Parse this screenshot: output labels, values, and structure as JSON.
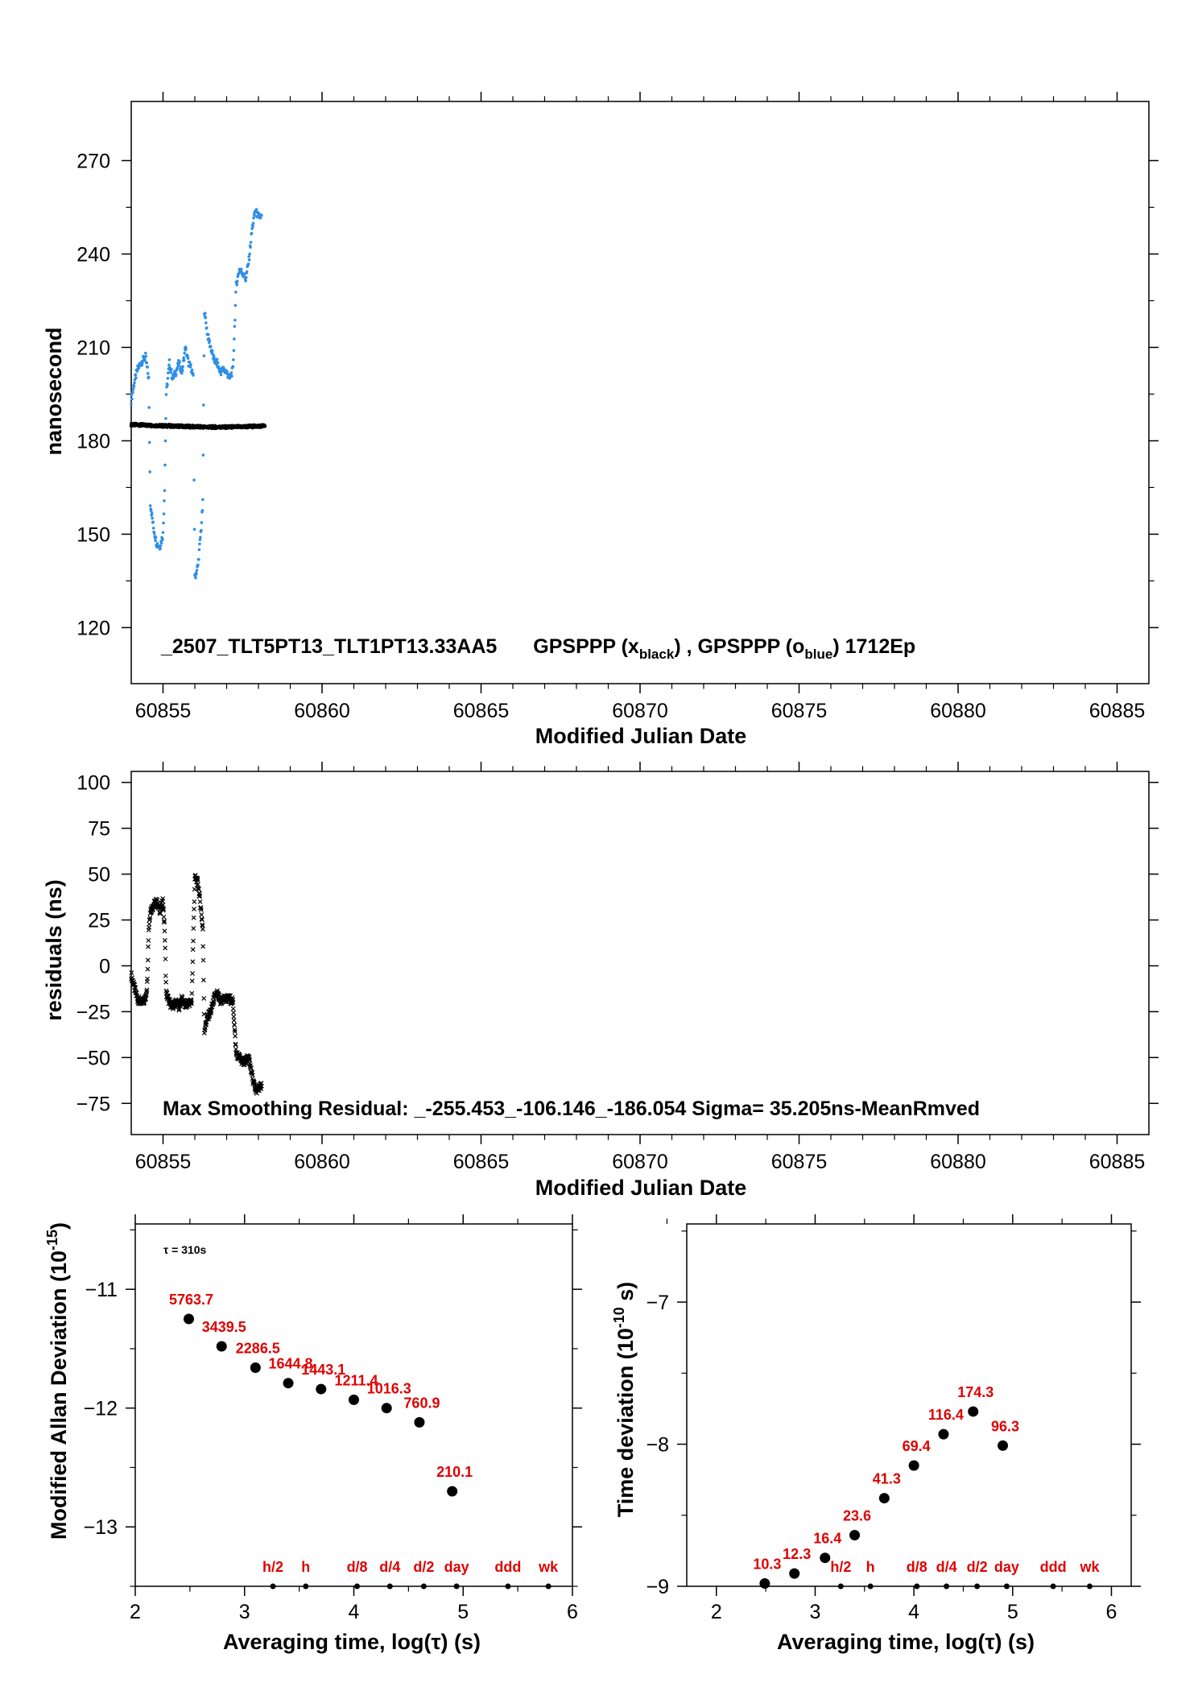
{
  "chart_data": [
    {
      "type": "scatter",
      "id": "phase",
      "title": "_2507_TLT5PT13_TLT1PT13.33AA5",
      "annotation_prefix": "GPSPPP (x",
      "annotation_sub1": "black",
      "annotation_mid": ") ,  GPSPPP (o",
      "annotation_sub2": "blue",
      "annotation_suffix": ")  1712Ep",
      "xlabel": "Modified Julian Date",
      "ylabel": "nanosecond",
      "xlim": [
        60854,
        60886
      ],
      "ylim": [
        102,
        289
      ],
      "xticks": [
        60855,
        60860,
        60865,
        60870,
        60875,
        60880,
        60885
      ],
      "yticks": [
        120,
        150,
        180,
        210,
        240,
        270
      ],
      "colors": {
        "black_series": "#000000",
        "blue_series": "#2f8fe6"
      },
      "series": [
        {
          "name": "GPSPPP (x black)",
          "color": "#000000",
          "points": [
            [
              60854.0,
              185.2
            ],
            [
              60854.5,
              185.0
            ],
            [
              60855.0,
              184.8
            ],
            [
              60855.5,
              184.7
            ],
            [
              60856.0,
              184.5
            ],
            [
              60856.5,
              184.4
            ],
            [
              60857.0,
              184.4
            ],
            [
              60857.5,
              184.5
            ],
            [
              60858.0,
              184.7
            ],
            [
              60858.2,
              184.8
            ]
          ]
        },
        {
          "name": "GPSPPP (o blue)",
          "color": "#2f8fe6",
          "points": [
            [
              60854.0,
              193
            ],
            [
              60854.1,
              199
            ],
            [
              60854.2,
              203
            ],
            [
              60854.3,
              205
            ],
            [
              60854.45,
              207
            ],
            [
              60854.55,
              200
            ],
            [
              60854.6,
              160
            ],
            [
              60854.7,
              152
            ],
            [
              60854.8,
              147
            ],
            [
              60854.9,
              146
            ],
            [
              60855.0,
              150
            ],
            [
              60855.05,
              165
            ],
            [
              60855.1,
              195
            ],
            [
              60855.2,
              205
            ],
            [
              60855.3,
              200
            ],
            [
              60855.4,
              202
            ],
            [
              60855.5,
              205
            ],
            [
              60855.6,
              202
            ],
            [
              60855.7,
              210
            ],
            [
              60855.8,
              205
            ],
            [
              60855.9,
              203
            ],
            [
              60855.95,
              200
            ],
            [
              60856.0,
              136
            ],
            [
              60856.1,
              140
            ],
            [
              60856.2,
              152
            ],
            [
              60856.25,
              160
            ],
            [
              60856.3,
              222
            ],
            [
              60856.4,
              214
            ],
            [
              60856.5,
              210
            ],
            [
              60856.6,
              206
            ],
            [
              60856.7,
              205
            ],
            [
              60856.8,
              202
            ],
            [
              60856.9,
              203
            ],
            [
              60857.0,
              202
            ],
            [
              60857.1,
              200
            ],
            [
              60857.2,
              203
            ],
            [
              60857.3,
              230
            ],
            [
              60857.4,
              235
            ],
            [
              60857.5,
              234
            ],
            [
              60857.6,
              232
            ],
            [
              60857.7,
              238
            ],
            [
              60857.8,
              248
            ],
            [
              60857.9,
              254
            ],
            [
              60858.0,
              252
            ],
            [
              60858.1,
              252
            ]
          ]
        }
      ]
    },
    {
      "type": "scatter",
      "id": "residuals",
      "annotation": "Max Smoothing Residual: _-255.453_-106.146_-186.054  Sigma= 35.205ns-MeanRmved",
      "xlabel": "Modified Julian Date",
      "ylabel": "residuals (ns)",
      "xlim": [
        60854,
        60886
      ],
      "ylim": [
        -92,
        106
      ],
      "xticks": [
        60855,
        60860,
        60865,
        60870,
        60875,
        60880,
        60885
      ],
      "yticks": [
        100,
        75,
        50,
        25,
        0,
        -25,
        -50,
        -75
      ],
      "ytick_labels": [
        "100",
        "75",
        "50",
        "25",
        "0",
        "−25",
        "−50",
        "−75"
      ],
      "series": [
        {
          "color": "#000000",
          "points": [
            [
              60854.0,
              -5
            ],
            [
              60854.1,
              -12
            ],
            [
              60854.2,
              -18
            ],
            [
              60854.3,
              -20
            ],
            [
              60854.45,
              -18
            ],
            [
              60854.5,
              -10
            ],
            [
              60854.55,
              20
            ],
            [
              60854.6,
              30
            ],
            [
              60854.7,
              33
            ],
            [
              60854.8,
              35
            ],
            [
              60854.9,
              30
            ],
            [
              60855.0,
              35
            ],
            [
              60855.05,
              20
            ],
            [
              60855.1,
              -15
            ],
            [
              60855.2,
              -20
            ],
            [
              60855.3,
              -22
            ],
            [
              60855.4,
              -20
            ],
            [
              60855.5,
              -22
            ],
            [
              60855.6,
              -18
            ],
            [
              60855.7,
              -22
            ],
            [
              60855.8,
              -20
            ],
            [
              60855.9,
              -20
            ],
            [
              60856.0,
              48
            ],
            [
              60856.1,
              45
            ],
            [
              60856.2,
              30
            ],
            [
              60856.25,
              20
            ],
            [
              60856.3,
              -35
            ],
            [
              60856.4,
              -28
            ],
            [
              60856.5,
              -25
            ],
            [
              60856.6,
              -18
            ],
            [
              60856.7,
              -15
            ],
            [
              60856.8,
              -20
            ],
            [
              60856.9,
              -18
            ],
            [
              60857.0,
              -18
            ],
            [
              60857.1,
              -18
            ],
            [
              60857.2,
              -20
            ],
            [
              60857.3,
              -48
            ],
            [
              60857.4,
              -50
            ],
            [
              60857.5,
              -52
            ],
            [
              60857.6,
              -52
            ],
            [
              60857.7,
              -50
            ],
            [
              60857.8,
              -60
            ],
            [
              60857.9,
              -68
            ],
            [
              60858.0,
              -67
            ],
            [
              60858.1,
              -66
            ]
          ]
        }
      ]
    },
    {
      "type": "scatter",
      "id": "mdev",
      "annotation": "τ = 310s",
      "xlabel": "Averaging time, log(τ) (s)",
      "ylabel_prefix": "Modified Allan Deviation (10",
      "ylabel_sup": "-15",
      "ylabel_suffix": ")",
      "xlim": [
        2,
        6
      ],
      "ylim": [
        -13.5,
        -10.45
      ],
      "xticks": [
        2,
        3,
        4,
        5,
        6
      ],
      "yticks": [
        -11,
        -12,
        -13
      ],
      "ytick_labels": [
        "−11",
        "−12",
        "−13"
      ],
      "points": [
        {
          "x": 2.49,
          "y": -11.25,
          "label": "5763.7"
        },
        {
          "x": 2.79,
          "y": -11.48,
          "label": "3439.5"
        },
        {
          "x": 3.1,
          "y": -11.66,
          "label": "2286.5"
        },
        {
          "x": 3.4,
          "y": -11.79,
          "label": "1644.8"
        },
        {
          "x": 3.7,
          "y": -11.84,
          "label": "1443.1"
        },
        {
          "x": 4.0,
          "y": -11.93,
          "label": "1211.4"
        },
        {
          "x": 4.3,
          "y": -12.0,
          "label": "1016.3"
        },
        {
          "x": 4.6,
          "y": -12.12,
          "label": "760.9"
        },
        {
          "x": 4.9,
          "y": -12.7,
          "label": "210.1"
        }
      ],
      "markers": [
        {
          "x": 3.26,
          "label": "h/2"
        },
        {
          "x": 3.56,
          "label": "h"
        },
        {
          "x": 4.03,
          "label": "d/8"
        },
        {
          "x": 4.33,
          "label": "d/4"
        },
        {
          "x": 4.64,
          "label": "d/2"
        },
        {
          "x": 4.94,
          "label": "day"
        },
        {
          "x": 5.41,
          "label": "ddd"
        },
        {
          "x": 5.78,
          "label": "wk"
        }
      ]
    },
    {
      "type": "scatter",
      "id": "tdev",
      "xlabel": "Averaging time, log(τ) (s)",
      "ylabel_prefix": "Time deviation (10",
      "ylabel_sup": "-10",
      "ylabel_suffix": " s)",
      "xlim": [
        1.7,
        6.2
      ],
      "ylim": [
        -9.0,
        -6.45
      ],
      "xticks": [
        2,
        3,
        4,
        5,
        6
      ],
      "yticks": [
        -7,
        -8,
        -9
      ],
      "ytick_labels": [
        "−7",
        "−8",
        "−9"
      ],
      "points": [
        {
          "x": 2.49,
          "y": -8.98,
          "label": "10.3"
        },
        {
          "x": 2.79,
          "y": -8.91,
          "label": "12.3"
        },
        {
          "x": 3.1,
          "y": -8.8,
          "label": "16.4"
        },
        {
          "x": 3.4,
          "y": -8.64,
          "label": "23.6"
        },
        {
          "x": 3.7,
          "y": -8.38,
          "label": "41.3"
        },
        {
          "x": 4.0,
          "y": -8.15,
          "label": "69.4"
        },
        {
          "x": 4.3,
          "y": -7.93,
          "label": "116.4"
        },
        {
          "x": 4.6,
          "y": -7.77,
          "label": "174.3"
        },
        {
          "x": 4.9,
          "y": -8.01,
          "label": "96.3"
        }
      ],
      "markers": [
        {
          "x": 3.26,
          "label": "h/2"
        },
        {
          "x": 3.56,
          "label": "h"
        },
        {
          "x": 4.03,
          "label": "d/8"
        },
        {
          "x": 4.33,
          "label": "d/4"
        },
        {
          "x": 4.64,
          "label": "d/2"
        },
        {
          "x": 4.94,
          "label": "day"
        },
        {
          "x": 5.41,
          "label": "ddd"
        },
        {
          "x": 5.78,
          "label": "wk"
        }
      ]
    }
  ]
}
